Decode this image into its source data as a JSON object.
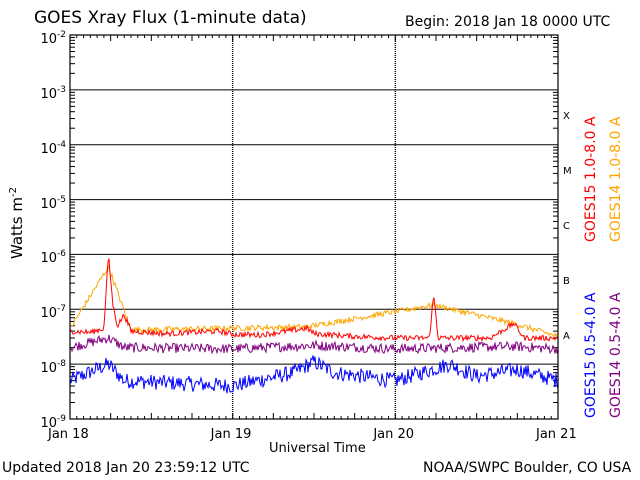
{
  "title": "GOES Xray Flux (1-minute data)",
  "begin": "Begin:  2018 Jan 18 0000 UTC",
  "updated": "Updated 2018 Jan 20 23:59:12 UTC",
  "credit": "NOAA/SWPC Boulder, CO USA",
  "chart_data": {
    "type": "line",
    "title": "GOES Xray Flux (1-minute data)",
    "xlabel": "Universal Time",
    "ylabel": "Watts m",
    "ylabel_exp": "-2",
    "yscale": "log",
    "ylim": [
      1e-09,
      0.01
    ],
    "xlim": [
      "2018-01-18 00:00",
      "2018-01-21 00:00"
    ],
    "x_ticks": [
      "Jan 18",
      "Jan 19",
      "Jan 20",
      "Jan 21"
    ],
    "y_ticks": [
      {
        "base": "10",
        "exp": "-2"
      },
      {
        "base": "10",
        "exp": "-3"
      },
      {
        "base": "10",
        "exp": "-4"
      },
      {
        "base": "10",
        "exp": "-5"
      },
      {
        "base": "10",
        "exp": "-6"
      },
      {
        "base": "10",
        "exp": "-7"
      },
      {
        "base": "10",
        "exp": "-8"
      },
      {
        "base": "10",
        "exp": "-9"
      }
    ],
    "flare_classes": [
      "X",
      "M",
      "C",
      "B",
      "A"
    ],
    "grid": true,
    "legend_position": "right",
    "series": [
      {
        "name": "GOES15 1.0-8.0 A",
        "color": "#ff0000",
        "points": [
          [
            "2018-01-18 00:00",
            4e-08
          ],
          [
            "2018-01-18 03:00",
            3.8e-08
          ],
          [
            "2018-01-18 05:00",
            4.5e-08
          ],
          [
            "2018-01-18 05:40",
            1e-06
          ],
          [
            "2018-01-18 06:20",
            1.2e-07
          ],
          [
            "2018-01-18 07:00",
            5e-08
          ],
          [
            "2018-01-18 08:00",
            8e-08
          ],
          [
            "2018-01-18 09:00",
            4e-08
          ],
          [
            "2018-01-18 14:00",
            3.6e-08
          ],
          [
            "2018-01-18 22:00",
            4e-08
          ],
          [
            "2018-01-19 00:00",
            3.5e-08
          ],
          [
            "2018-01-19 04:00",
            3.4e-08
          ],
          [
            "2018-01-19 11:00",
            4.5e-08
          ],
          [
            "2018-01-19 12:00",
            3.6e-08
          ],
          [
            "2018-01-19 18:00",
            3.2e-08
          ],
          [
            "2018-01-20 00:00",
            3e-08
          ],
          [
            "2018-01-20 05:00",
            3e-08
          ],
          [
            "2018-01-20 05:40",
            1.8e-07
          ],
          [
            "2018-01-20 06:20",
            3e-08
          ],
          [
            "2018-01-20 14:00",
            3e-08
          ],
          [
            "2018-01-20 17:30",
            5.5e-08
          ],
          [
            "2018-01-20 19:00",
            3e-08
          ],
          [
            "2018-01-21 00:00",
            3e-08
          ]
        ]
      },
      {
        "name": "GOES14 1.0-8.0 A",
        "color": "#ffa500",
        "points": [
          [
            "2018-01-18 00:00",
            4.4e-08
          ],
          [
            "2018-01-18 05:40",
            6e-07
          ],
          [
            "2018-01-18 09:00",
            4.2e-08
          ],
          [
            "2018-01-19 11:00",
            4.8e-08
          ],
          [
            "2018-01-20 05:40",
            1.2e-07
          ],
          [
            "2018-01-20 17:30",
            5.5e-08
          ],
          [
            "2018-01-21 00:00",
            3.2e-08
          ]
        ]
      },
      {
        "name": "GOES15 0.5-4.0 A",
        "color": "#0000ff",
        "points": [
          [
            "2018-01-18 00:00",
            5e-09
          ],
          [
            "2018-01-18 05:40",
            1e-08
          ],
          [
            "2018-01-18 08:00",
            5e-09
          ],
          [
            "2018-01-19 00:00",
            4e-09
          ],
          [
            "2018-01-19 09:00",
            7e-09
          ],
          [
            "2018-01-19 12:00",
            1.1e-08
          ],
          [
            "2018-01-19 15:00",
            7e-09
          ],
          [
            "2018-01-20 00:00",
            5e-09
          ],
          [
            "2018-01-20 08:00",
            1e-08
          ],
          [
            "2018-01-20 12:00",
            6e-09
          ],
          [
            "2018-01-20 18:00",
            8e-09
          ],
          [
            "2018-01-21 00:00",
            5e-09
          ]
        ]
      },
      {
        "name": "GOES14 0.5-4.0 A",
        "color": "#800080",
        "points": [
          [
            "2018-01-18 00:00",
            2e-08
          ],
          [
            "2018-01-18 05:40",
            3e-08
          ],
          [
            "2018-01-18 08:00",
            2e-08
          ],
          [
            "2018-01-19 00:00",
            1.9e-08
          ],
          [
            "2018-01-19 12:00",
            2.2e-08
          ],
          [
            "2018-01-20 00:00",
            1.9e-08
          ],
          [
            "2018-01-20 17:30",
            2.1e-08
          ],
          [
            "2018-01-21 00:00",
            1.9e-08
          ]
        ]
      }
    ]
  }
}
